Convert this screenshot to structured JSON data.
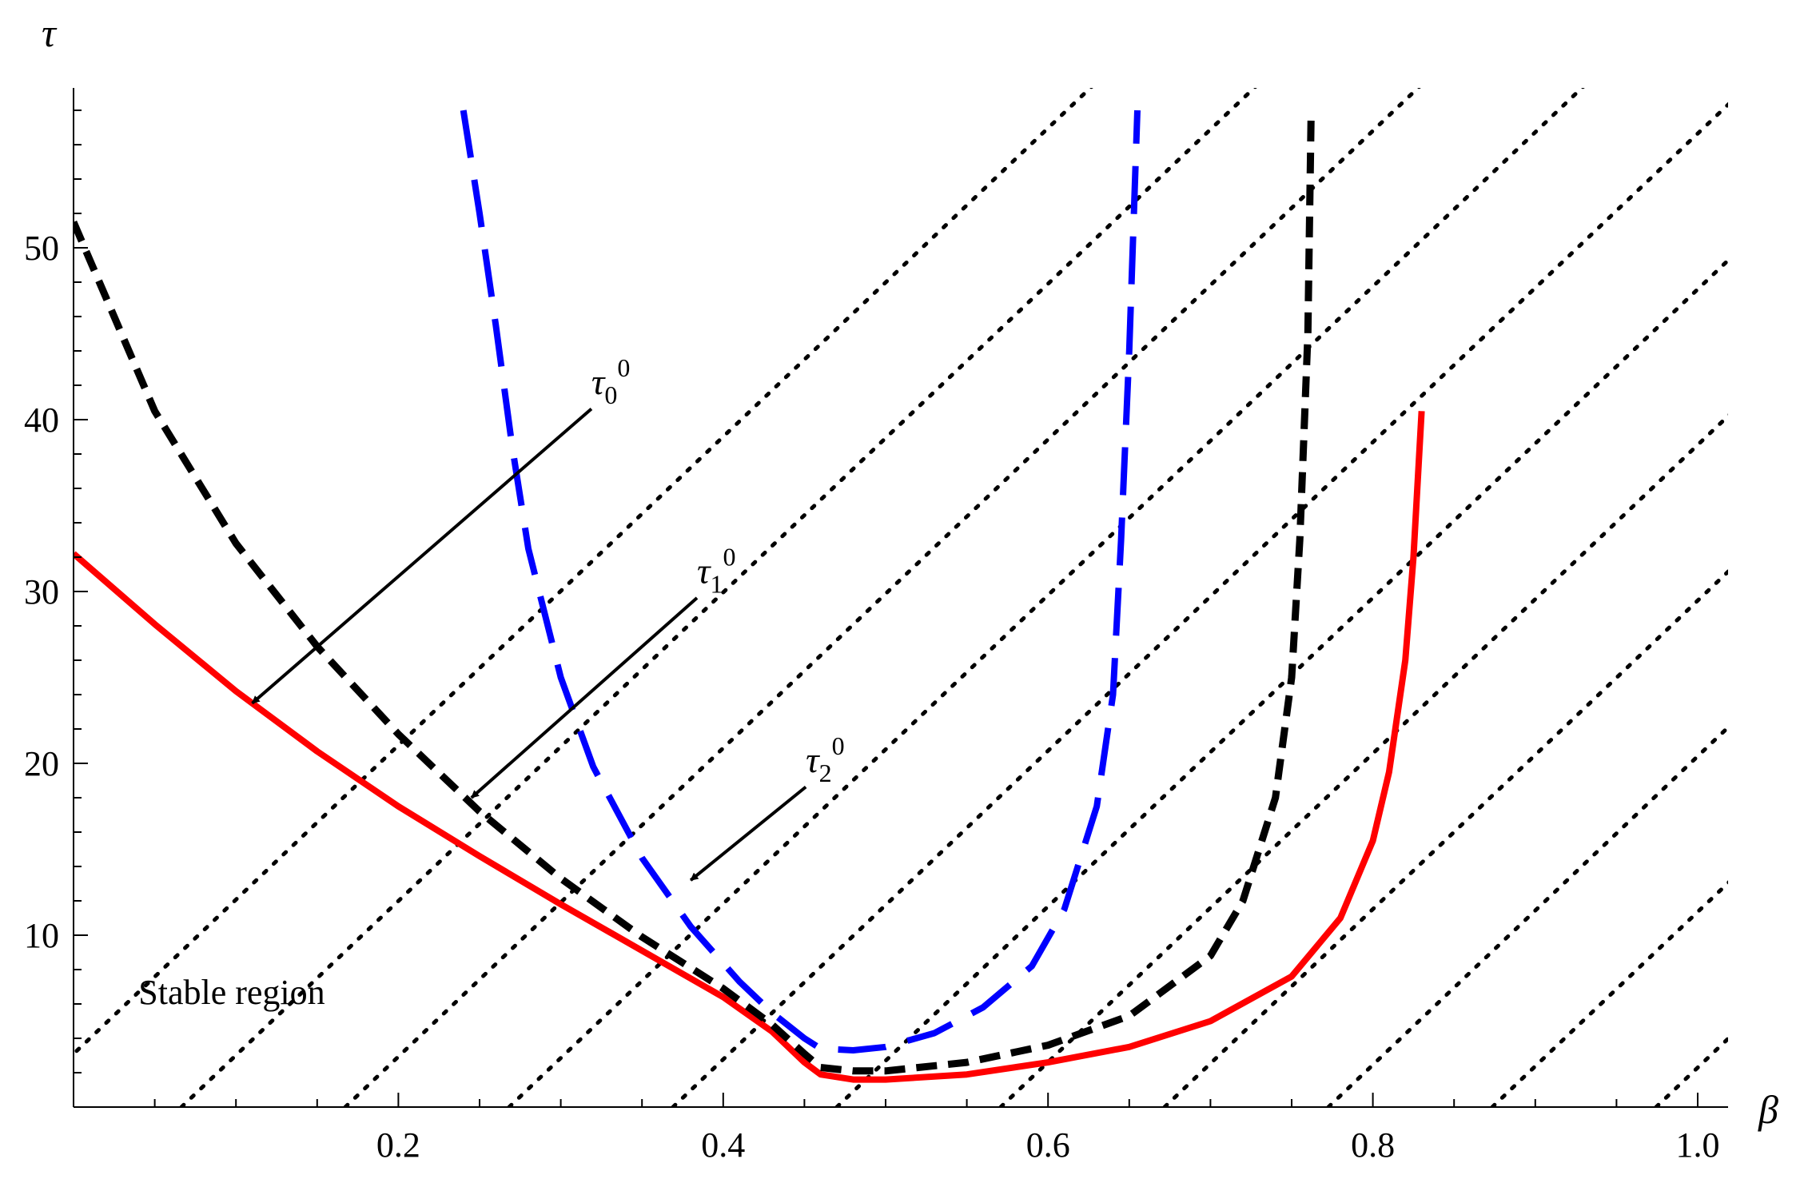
{
  "chart_data": {
    "type": "line",
    "title": "",
    "xlabel": "β",
    "ylabel": "τ",
    "xlim": [
      0,
      1.02
    ],
    "ylim": [
      0,
      58
    ],
    "x_ticks": [
      0.2,
      0.4,
      0.6,
      0.8,
      1.0
    ],
    "x_tick_labels": [
      "0.2",
      "0.4",
      "0.6",
      "0.8",
      "1.0"
    ],
    "y_ticks": [
      10,
      20,
      30,
      40,
      50
    ],
    "y_tick_labels": [
      "10",
      "20",
      "30",
      "40",
      "50"
    ],
    "grid": false,
    "legend": "none",
    "series": [
      {
        "color": "#ff0000",
        "style": "solid",
        "x": [
          0,
          0.05,
          0.1,
          0.15,
          0.2,
          0.25,
          0.3,
          0.35,
          0.4,
          0.43,
          0.45,
          0.46,
          0.48,
          0.5,
          0.55,
          0.6,
          0.65,
          0.7,
          0.75,
          0.78,
          0.8,
          0.81,
          0.82,
          0.825,
          0.83
        ],
        "y": [
          32.2,
          28.1,
          24.2,
          20.7,
          17.5,
          14.6,
          11.8,
          9.1,
          6.4,
          4.4,
          2.6,
          1.9,
          1.6,
          1.6,
          1.9,
          2.6,
          3.5,
          5.0,
          7.6,
          11.0,
          15.5,
          19.5,
          26.0,
          32.0,
          40.5
        ]
      },
      {
        "color": "#000000",
        "style": "dashed",
        "x": [
          0,
          0.05,
          0.1,
          0.15,
          0.2,
          0.25,
          0.3,
          0.35,
          0.4,
          0.43,
          0.45,
          0.46,
          0.48,
          0.5,
          0.55,
          0.6,
          0.65,
          0.7,
          0.72,
          0.74,
          0.75,
          0.755,
          0.76,
          0.762
        ],
        "y": [
          51.5,
          40.5,
          32.8,
          26.8,
          21.7,
          17.2,
          13.3,
          9.9,
          6.9,
          4.8,
          3.1,
          2.3,
          2.1,
          2.1,
          2.6,
          3.6,
          5.3,
          8.8,
          12.0,
          18.0,
          25.0,
          33.0,
          45.0,
          58.0
        ]
      },
      {
        "color": "#0000ff",
        "style": "longdash",
        "x": [
          0.24,
          0.25,
          0.26,
          0.27,
          0.28,
          0.3,
          0.32,
          0.35,
          0.38,
          0.41,
          0.43,
          0.45,
          0.46,
          0.48,
          0.5,
          0.53,
          0.56,
          0.59,
          0.61,
          0.63,
          0.64,
          0.645,
          0.65,
          0.655
        ],
        "y": [
          58.0,
          52.0,
          45.5,
          38.5,
          32.5,
          25.0,
          19.8,
          14.5,
          10.5,
          7.3,
          5.5,
          4.0,
          3.4,
          3.3,
          3.5,
          4.3,
          5.8,
          8.2,
          11.5,
          17.5,
          24.0,
          33.0,
          44.0,
          58.0
        ]
      }
    ],
    "annotations": [
      {
        "base": "τ",
        "sub": "0",
        "sup": "0",
        "text_at": [
          0.31,
          41.5
        ],
        "arrow_from": [
          0.31,
          41.0
        ],
        "arrow_to": [
          0.11,
          23.5
        ]
      },
      {
        "base": "τ",
        "sub": "1",
        "sup": "0",
        "text_at": [
          0.375,
          30.5
        ],
        "arrow_from": [
          0.375,
          30.0
        ],
        "arrow_to": [
          0.245,
          18.0
        ]
      },
      {
        "base": "τ",
        "sub": "2",
        "sup": "0",
        "text_at": [
          0.442,
          19.5
        ],
        "arrow_from": [
          0.442,
          19.0
        ],
        "arrow_to": [
          0.38,
          13.2
        ]
      }
    ],
    "region_label": "Stable region",
    "region_label_at": [
      0.04,
      6.0
    ]
  }
}
